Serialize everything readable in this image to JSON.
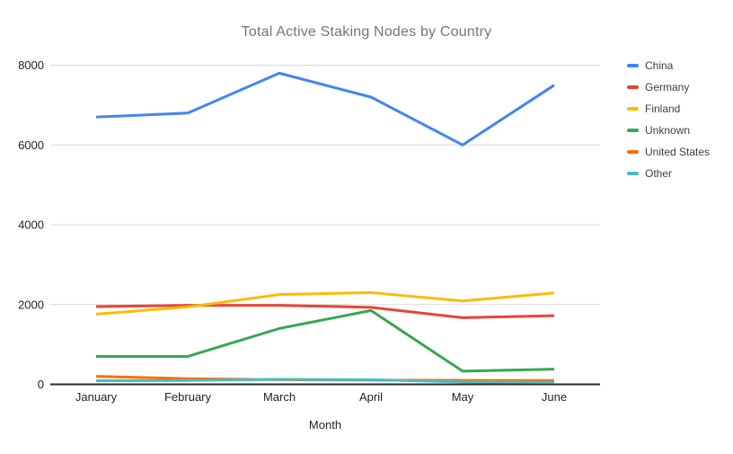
{
  "chart": {
    "title": "Total Active Staking Nodes by Country"
  },
  "chart_data": {
    "type": "line",
    "title": "Total Active Staking Nodes by Country",
    "xlabel": "Month",
    "ylabel": "",
    "categories": [
      "January",
      "February",
      "March",
      "April",
      "May",
      "June"
    ],
    "series": [
      {
        "name": "China",
        "color": "#4285F4",
        "values": [
          6700,
          6800,
          7800,
          7200,
          6000,
          7500
        ]
      },
      {
        "name": "Germany",
        "color": "#EA4335",
        "values": [
          1950,
          1980,
          1980,
          1930,
          1670,
          1720
        ]
      },
      {
        "name": "Finland",
        "color": "#FBBC04",
        "values": [
          1760,
          1940,
          2250,
          2300,
          2090,
          2290
        ]
      },
      {
        "name": "Unknown",
        "color": "#34A853",
        "values": [
          700,
          700,
          1400,
          1850,
          330,
          380
        ]
      },
      {
        "name": "United States",
        "color": "#FF6D01",
        "values": [
          200,
          140,
          115,
          105,
          100,
          95
        ]
      },
      {
        "name": "Other",
        "color": "#46BDC6",
        "values": [
          90,
          95,
          125,
          115,
          60,
          50
        ]
      }
    ],
    "ylim": [
      0,
      8000
    ],
    "yticks": [
      0,
      2000,
      4000,
      6000,
      8000
    ],
    "grid": true,
    "legend_position": "right"
  },
  "colors": {
    "background": "#ffffff",
    "title_text": "#757575",
    "axis_text": "#222222",
    "legend_text": "#3c4043",
    "gridline": "#d9d9d9",
    "axis_line": "#2b2b2b"
  }
}
